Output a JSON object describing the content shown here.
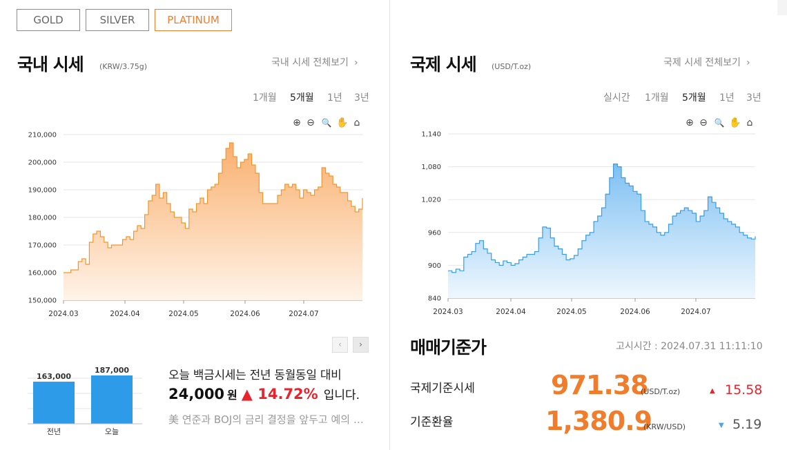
{
  "tabs": [
    {
      "label": "GOLD",
      "active": false
    },
    {
      "label": "SILVER",
      "active": false
    },
    {
      "label": "PLATINUM",
      "active": true
    }
  ],
  "domestic": {
    "title": "국내 시세",
    "unit": "(KRW/3.75g)",
    "more_link": "국내 시세 전체보기",
    "periods": [
      "1개월",
      "5개월",
      "1년",
      "3년"
    ],
    "selected_period": "5개월",
    "pager": {
      "prev": "‹",
      "next": "›"
    }
  },
  "international": {
    "title": "국제 시세",
    "unit": "(USD/T.oz)",
    "more_link": "국제 시세 전체보기",
    "periods": [
      "실시간",
      "1개월",
      "5개월",
      "1년",
      "3년"
    ],
    "selected_period": "5개월"
  },
  "chart_tools": [
    {
      "icon": "zoom-in-icon",
      "glyph": "⊕"
    },
    {
      "icon": "zoom-out-icon",
      "glyph": "⊖"
    },
    {
      "icon": "magnifier-icon",
      "glyph": "🔍"
    },
    {
      "icon": "hand-pan-icon",
      "glyph": "✋"
    },
    {
      "icon": "home-icon",
      "glyph": "⌂"
    }
  ],
  "compare": {
    "line1": "오늘 백금시세는 전년 동월동일 대비",
    "amount": "24,000",
    "won": "원",
    "change": "▲ 14.72%",
    "tail": "입니다.",
    "news": "美 연준과 BOJ의 금리 결정을 앞두고 예의 주시"
  },
  "base_price": {
    "title": "매매기준가",
    "time_label": "고시시간 : 2024.07.31 11:11:10",
    "rows": [
      {
        "label": "국제기준시세",
        "value": "971.38",
        "unit": "(USD/T.oz)",
        "arrow": "▲",
        "change": "15.58",
        "dir": "up"
      },
      {
        "label": "기준환율",
        "value": "1,380.9",
        "unit": "(KRW/USD)",
        "arrow": "▼",
        "change": "5.19",
        "dir": "down"
      }
    ]
  },
  "colors": {
    "accent": "#f07d2b",
    "up": "#e8232b",
    "down": "#4da3e8",
    "domestic_line": "#f0962e",
    "intl_line": "#3a9be0",
    "bar": "#2d9be8"
  },
  "chart_data": [
    {
      "type": "area",
      "x_ticks": [
        "2024.03",
        "2024.04",
        "2024.05",
        "2024.06",
        "2024.07"
      ],
      "y_ticks": [
        "150,000",
        "160,000",
        "170,000",
        "180,000",
        "190,000",
        "200,000",
        "210,000"
      ],
      "ylim": [
        150000,
        210000
      ],
      "grid": true,
      "values": [
        160000,
        160000,
        161000,
        161000,
        164000,
        165000,
        163000,
        171000,
        174000,
        175000,
        173000,
        171000,
        169000,
        170000,
        170000,
        170000,
        172000,
        173000,
        172000,
        175000,
        177000,
        176000,
        181000,
        186000,
        188000,
        192000,
        187000,
        189000,
        185000,
        182000,
        180000,
        180000,
        178000,
        176000,
        183000,
        182000,
        185000,
        187000,
        185000,
        190000,
        191000,
        192000,
        196000,
        201000,
        205000,
        207000,
        202000,
        198000,
        200000,
        201000,
        203000,
        199000,
        196000,
        189000,
        185000,
        185000,
        185000,
        185000,
        188000,
        190000,
        192000,
        191000,
        192000,
        190000,
        187000,
        190000,
        189000,
        188000,
        190000,
        191000,
        198000,
        196000,
        195000,
        192000,
        191000,
        189000,
        189000,
        186000,
        184000,
        182000,
        183000,
        187000
      ]
    },
    {
      "type": "area",
      "x_ticks": [
        "2024.03",
        "2024.04",
        "2024.05",
        "2024.06",
        "2024.07"
      ],
      "y_ticks": [
        "840",
        "900",
        "960",
        "1,020",
        "1,080",
        "1,140"
      ],
      "ylim": [
        840,
        1140
      ],
      "grid": true,
      "values": [
        890,
        887,
        893,
        890,
        915,
        920,
        925,
        940,
        945,
        930,
        922,
        910,
        905,
        900,
        908,
        905,
        900,
        903,
        910,
        915,
        920,
        920,
        925,
        950,
        970,
        968,
        950,
        935,
        930,
        920,
        910,
        912,
        918,
        930,
        945,
        955,
        960,
        980,
        990,
        1005,
        1030,
        1060,
        1085,
        1080,
        1060,
        1050,
        1045,
        1035,
        1030,
        1000,
        980,
        975,
        970,
        960,
        955,
        960,
        975,
        990,
        995,
        1000,
        1005,
        1000,
        995,
        980,
        990,
        1000,
        1025,
        1015,
        1005,
        995,
        985,
        980,
        975,
        970,
        960,
        955,
        950,
        948,
        953
      ]
    },
    {
      "type": "bar",
      "categories": [
        "전년",
        "오늘"
      ],
      "values": [
        163000,
        187000
      ],
      "value_labels": [
        "163,000",
        "187,000"
      ]
    }
  ]
}
